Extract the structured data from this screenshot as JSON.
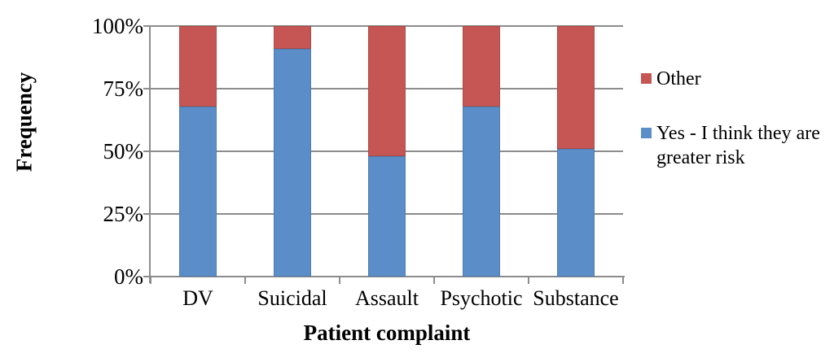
{
  "chart_data": {
    "type": "bar",
    "stacked": true,
    "units": "percent",
    "title": "",
    "xlabel": "Patient complaint",
    "ylabel": "Frequency",
    "categories": [
      "DV",
      "Suicidal",
      "Assault",
      "Psychotic",
      "Substance"
    ],
    "series": [
      {
        "name": "Yes - I think they are greater risk",
        "short_name": "yes",
        "color": "#5b8ec8",
        "values": [
          68,
          91,
          48,
          68,
          51
        ]
      },
      {
        "name": "Other",
        "short_name": "other",
        "color": "#c65653",
        "values": [
          32,
          9,
          52,
          32,
          49
        ]
      }
    ],
    "y_ticks": [
      "0%",
      "25%",
      "50%",
      "75%",
      "100%"
    ],
    "ylim": [
      0,
      100
    ],
    "grid": true,
    "legend_position": "right",
    "legend_order_top_to_bottom": [
      "Other",
      "Yes - I think they are greater risk"
    ]
  },
  "colors": {
    "background": "#ffffff",
    "grid": "#8c8c8c",
    "axis": "#8c8c8c",
    "text": "#000000"
  }
}
